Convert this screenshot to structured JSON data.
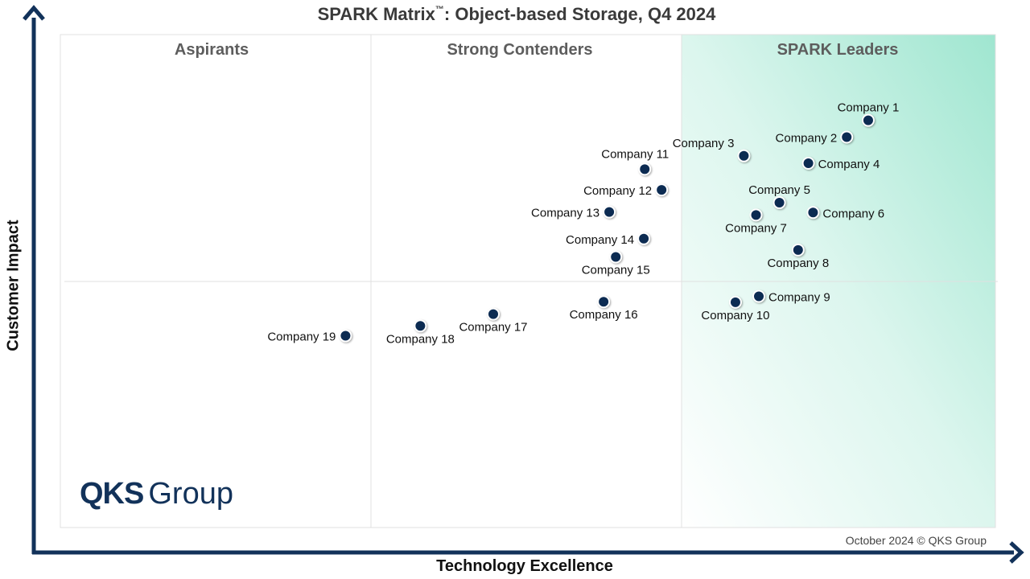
{
  "header": {
    "title_main": "SPARK Matrix",
    "title_tm": "™",
    "title_rest": ": Object-based Storage, Q4 2024"
  },
  "footer": {
    "copyright": "October 2024 © QKS Group"
  },
  "logo": {
    "brand": "QKS",
    "brand_sub": "Group"
  },
  "colors": {
    "accent": "#12325a",
    "leader_gradient": "#9fe6d0",
    "marker": "#0c2b52"
  },
  "chart_data": {
    "type": "scatter",
    "title": "SPARK Matrix™: Object-based Storage, Q4 2024",
    "xlabel": "Technology Excellence",
    "ylabel": "Customer Impact",
    "xlim": [
      0,
      100
    ],
    "ylim": [
      0,
      100
    ],
    "zones": [
      "Aspirants",
      "Strong Contenders",
      "SPARK Leaders"
    ],
    "grid": false,
    "points": [
      {
        "label": "Company 1",
        "x": 86.4,
        "y": 82.6,
        "label_pos": "above"
      },
      {
        "label": "Company 2",
        "x": 84.1,
        "y": 79.2,
        "label_pos": "left"
      },
      {
        "label": "Company 3",
        "x": 73.1,
        "y": 75.4,
        "label_pos": "above-left"
      },
      {
        "label": "Company 4",
        "x": 80.0,
        "y": 73.9,
        "label_pos": "right"
      },
      {
        "label": "Company 5",
        "x": 76.9,
        "y": 65.9,
        "label_pos": "above"
      },
      {
        "label": "Company 6",
        "x": 80.5,
        "y": 63.9,
        "label_pos": "right"
      },
      {
        "label": "Company 7",
        "x": 74.4,
        "y": 63.4,
        "label_pos": "below"
      },
      {
        "label": "Company 8",
        "x": 78.9,
        "y": 56.3,
        "label_pos": "below"
      },
      {
        "label": "Company 9",
        "x": 74.7,
        "y": 46.9,
        "label_pos": "right"
      },
      {
        "label": "Company 10",
        "x": 72.2,
        "y": 45.7,
        "label_pos": "below"
      },
      {
        "label": "Company 11",
        "x": 62.5,
        "y": 72.7,
        "label_pos": "above-right"
      },
      {
        "label": "Company 12",
        "x": 64.3,
        "y": 68.5,
        "label_pos": "left"
      },
      {
        "label": "Company 13",
        "x": 58.7,
        "y": 64.0,
        "label_pos": "left"
      },
      {
        "label": "Company 14",
        "x": 62.4,
        "y": 58.6,
        "label_pos": "left"
      },
      {
        "label": "Company 15",
        "x": 59.4,
        "y": 54.9,
        "label_pos": "below"
      },
      {
        "label": "Company 16",
        "x": 58.1,
        "y": 45.8,
        "label_pos": "below"
      },
      {
        "label": "Company 17",
        "x": 46.3,
        "y": 43.3,
        "label_pos": "below"
      },
      {
        "label": "Company 18",
        "x": 38.5,
        "y": 40.9,
        "label_pos": "below"
      },
      {
        "label": "Company 19",
        "x": 30.5,
        "y": 38.9,
        "label_pos": "left"
      }
    ]
  }
}
